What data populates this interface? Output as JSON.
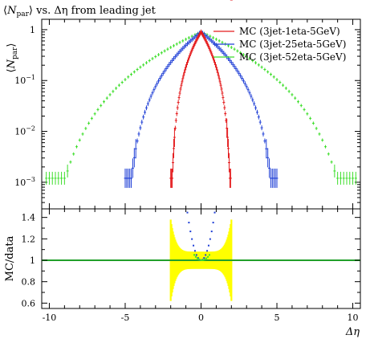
{
  "chart_data": [
    {
      "type": "scatter",
      "title": "⟨N_par⟩ vs. Δη from leading jet",
      "title_parts": {
        "open": "⟨",
        "symbol": "N",
        "sub": "par",
        "close": "⟩ vs. Δη from leading jet"
      },
      "ylabel": "⟨N_par⟩",
      "ylabel_parts": {
        "open": "⟨",
        "symbol": "N",
        "sub": "par",
        "close": "⟩"
      },
      "xlim": [
        -10.5,
        10.5
      ],
      "ylim": [
        0.0003,
        1.6
      ],
      "yscale": "log",
      "yticks": [
        {
          "value": 1,
          "label": "1"
        },
        {
          "value": 0.1,
          "label": "10",
          "exp": "−1"
        },
        {
          "value": 0.01,
          "label": "10",
          "exp": "−2"
        },
        {
          "value": 0.001,
          "label": "10",
          "exp": "−3"
        }
      ],
      "legend": {
        "placement": "top-right"
      },
      "series": [
        {
          "name": "MC (3jet-1eta-5GeV)",
          "color": "#e41a1c",
          "range": [
            -2,
            2
          ]
        },
        {
          "name": "MC (3jet-25eta-5GeV)",
          "color": "#1f3fd6",
          "range": [
            -5,
            5
          ]
        },
        {
          "name": "MC (3jet-52eta-5GeV)",
          "color": "#3cde2a",
          "range": [
            -10.2,
            10.2
          ]
        }
      ]
    },
    {
      "type": "scatter",
      "title": "",
      "ylabel": "MC/data",
      "xlabel": "Δη",
      "xlim": [
        -10.5,
        10.5
      ],
      "ylim": [
        0.55,
        1.48
      ],
      "xticks": [
        -10,
        -5,
        0,
        5,
        10
      ],
      "yticks": [
        0.6,
        0.8,
        1,
        1.2,
        1.4
      ],
      "reference_line": {
        "value": 1,
        "color": "#22a02a"
      },
      "uncertainty_band": {
        "color": "#ffff00"
      }
    }
  ]
}
